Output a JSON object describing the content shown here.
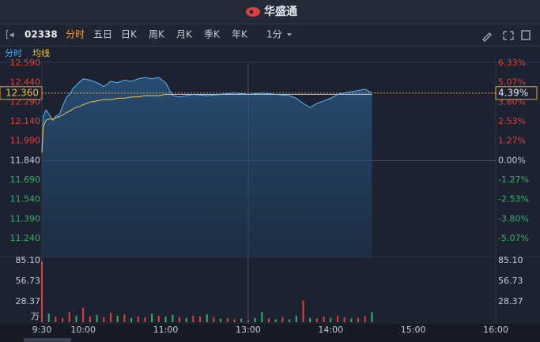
{
  "header": {
    "brand": "华盛通"
  },
  "toolbar": {
    "symbol": "02338",
    "tabs": [
      "分时",
      "五日",
      "日K",
      "周K",
      "月K",
      "季K",
      "年K"
    ],
    "interval": "1分"
  },
  "indicators": {
    "labels": [
      "分时",
      "均线"
    ]
  },
  "chart_data": {
    "type": "line",
    "xlim": [
      0,
      330
    ],
    "xticks": [
      {
        "value": 0,
        "label": "9:30"
      },
      {
        "value": 30,
        "label": "10:00"
      },
      {
        "value": 90,
        "label": "11:00"
      },
      {
        "value": 150,
        "label": "13:00"
      },
      {
        "value": 210,
        "label": "14:00"
      },
      {
        "value": 270,
        "label": "15:00"
      },
      {
        "value": 330,
        "label": "16:00"
      }
    ],
    "ylim": [
      11.24,
      12.59
    ],
    "yticks": [
      {
        "value": 12.59,
        "label": "12.590"
      },
      {
        "value": 12.44,
        "label": "12.440"
      },
      {
        "value": 12.29,
        "label": "12.290"
      },
      {
        "value": 12.14,
        "label": "12.140"
      },
      {
        "value": 11.99,
        "label": "11.990"
      },
      {
        "value": 11.84,
        "label": "11.840"
      },
      {
        "value": 11.69,
        "label": "11.690"
      },
      {
        "value": 11.54,
        "label": "11.540"
      },
      {
        "value": 11.39,
        "label": "11.390"
      },
      {
        "value": 11.24,
        "label": "11.240"
      }
    ],
    "y2lim": [
      -5.07,
      6.33
    ],
    "y2ticks": [
      {
        "value": 6.33,
        "label": "6.33%"
      },
      {
        "value": 5.07,
        "label": "5.07%"
      },
      {
        "value": 3.8,
        "label": "3.80%"
      },
      {
        "value": 2.53,
        "label": "2.53%"
      },
      {
        "value": 1.27,
        "label": "1.27%"
      },
      {
        "value": 0,
        "label": "0.00%"
      },
      {
        "value": -1.27,
        "label": "-1.27%"
      },
      {
        "value": -2.53,
        "label": "-2.53%"
      },
      {
        "value": -3.8,
        "label": "-3.80%"
      },
      {
        "value": -5.07,
        "label": "-5.07%"
      }
    ],
    "last_price": {
      "value": 12.36,
      "label": "12.360"
    },
    "last_change": {
      "value": 4.39,
      "label": "4.39%"
    },
    "x": [
      0,
      1,
      3,
      5,
      8,
      10,
      13,
      15,
      18,
      20,
      23,
      25,
      28,
      30,
      35,
      40,
      45,
      50,
      55,
      60,
      65,
      70,
      75,
      80,
      85,
      90,
      95,
      100,
      110,
      120,
      130,
      140,
      150,
      160,
      170,
      180,
      185,
      190,
      195,
      200,
      205,
      210,
      215,
      220,
      225,
      230,
      235,
      240
    ],
    "series": [
      {
        "color": "#5fb4f5",
        "area": true,
        "values": [
          11.9,
          12.18,
          12.23,
          12.2,
          12.15,
          12.18,
          12.2,
          12.26,
          12.33,
          12.35,
          12.4,
          12.42,
          12.45,
          12.47,
          12.46,
          12.44,
          12.41,
          12.45,
          12.44,
          12.46,
          12.45,
          12.47,
          12.48,
          12.47,
          12.48,
          12.44,
          12.34,
          12.33,
          12.35,
          12.34,
          12.35,
          12.36,
          12.35,
          12.36,
          12.35,
          12.34,
          12.32,
          12.28,
          12.25,
          12.28,
          12.3,
          12.32,
          12.35,
          12.36,
          12.37,
          12.38,
          12.39,
          12.36
        ]
      },
      {
        "color": "#e8c55a",
        "area": false,
        "values": [
          11.9,
          12.1,
          12.15,
          12.16,
          12.16,
          12.17,
          12.18,
          12.19,
          12.21,
          12.22,
          12.24,
          12.25,
          12.26,
          12.27,
          12.29,
          12.3,
          12.31,
          12.31,
          12.32,
          12.32,
          12.33,
          12.33,
          12.34,
          12.34,
          12.34,
          12.35,
          12.35,
          12.35,
          12.35,
          12.35,
          12.35,
          12.35,
          12.35,
          12.35,
          12.35,
          12.35,
          12.35,
          12.35,
          12.35,
          12.35,
          12.35,
          12.35,
          12.35,
          12.35,
          12.35,
          12.35,
          12.35,
          12.35
        ]
      }
    ],
    "volume": {
      "type": "bar",
      "ylim": [
        0,
        85.1
      ],
      "yticks": [
        {
          "value": 85.1,
          "label": "85.10"
        },
        {
          "value": 56.73,
          "label": "56.73"
        },
        {
          "value": 28.37,
          "label": "28.37"
        }
      ],
      "unit": "万",
      "x": [
        0,
        5,
        10,
        15,
        20,
        25,
        30,
        35,
        40,
        45,
        50,
        55,
        60,
        65,
        70,
        75,
        80,
        85,
        90,
        95,
        100,
        105,
        110,
        115,
        120,
        125,
        130,
        135,
        140,
        145,
        150,
        155,
        160,
        165,
        170,
        175,
        180,
        185,
        190,
        195,
        200,
        205,
        210,
        215,
        220,
        225,
        230,
        235,
        240
      ],
      "values": [
        84,
        12,
        8,
        6,
        14,
        9,
        20,
        8,
        10,
        7,
        13,
        9,
        11,
        6,
        8,
        7,
        12,
        9,
        8,
        10,
        7,
        6,
        9,
        8,
        11,
        7,
        5,
        6,
        4,
        5,
        3,
        6,
        14,
        5,
        4,
        7,
        4,
        9,
        30,
        6,
        5,
        8,
        6,
        9,
        7,
        5,
        6,
        8,
        14
      ],
      "colors": [
        "#e0403a",
        "#2fb36a",
        "#e0403a",
        "#e0403a",
        "#e0403a",
        "#2fb36a",
        "#e0403a",
        "#e0403a",
        "#2fb36a",
        "#e0403a",
        "#e0403a",
        "#2fb36a",
        "#e0403a",
        "#2fb36a",
        "#e0403a",
        "#e0403a",
        "#2fb36a",
        "#e0403a",
        "#2fb36a",
        "#2fb36a",
        "#e0403a",
        "#2fb36a",
        "#e0403a",
        "#e0403a",
        "#2fb36a",
        "#e0403a",
        "#2fb36a",
        "#e0403a",
        "#e0403a",
        "#2fb36a",
        "#e0403a",
        "#2fb36a",
        "#2fb36a",
        "#e0403a",
        "#2fb36a",
        "#e0403a",
        "#2fb36a",
        "#2fb36a",
        "#e0403a",
        "#2fb36a",
        "#e0403a",
        "#e0403a",
        "#2fb36a",
        "#e0403a",
        "#e0403a",
        "#2fb36a",
        "#e0403a",
        "#e0403a",
        "#2fb36a"
      ]
    }
  }
}
